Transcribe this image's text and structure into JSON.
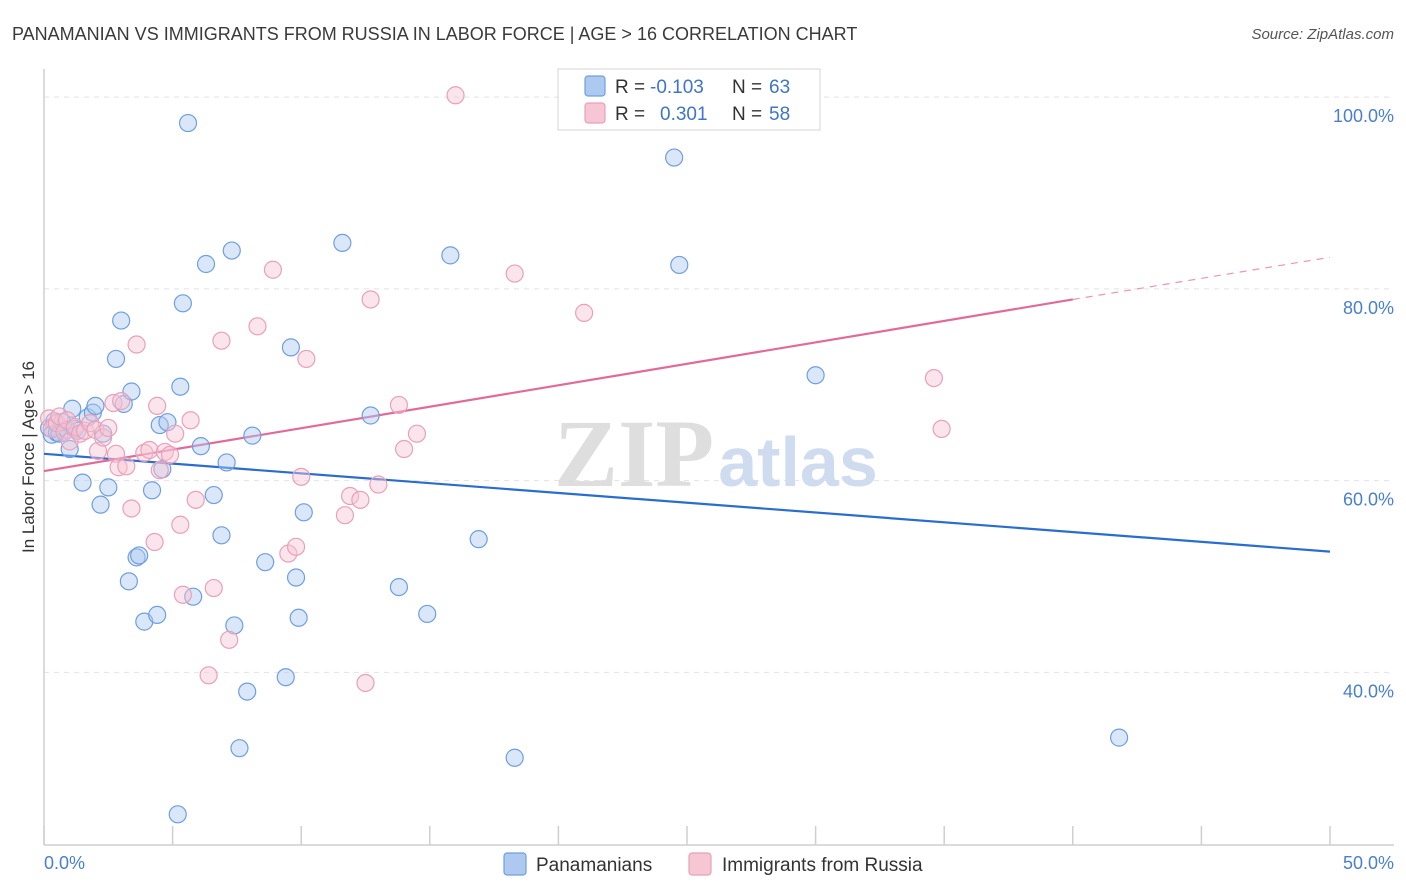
{
  "chart_data": {
    "type": "scatter",
    "title": "PANAMANIAN VS IMMIGRANTS FROM RUSSIA IN LABOR FORCE | AGE > 16 CORRELATION CHART",
    "source": "Source: ZipAtlas.com",
    "ylabel": "In Labor Force | Age > 16",
    "xlabel": "",
    "xlim": [
      0,
      50
    ],
    "ylim": [
      22,
      102
    ],
    "x_tick_labels": [
      "0.0%",
      "50.0%"
    ],
    "y_ticks": [
      40,
      60,
      80,
      100
    ],
    "y_tick_labels": [
      "40.0%",
      "60.0%",
      "80.0%",
      "100.0%"
    ],
    "grid": true,
    "watermark": {
      "zip": "ZIP",
      "atlas": "atlas"
    },
    "legend": {
      "position": "top-center",
      "r_label": "R =",
      "n_label": "N =",
      "entries": [
        {
          "series": "Panamanians",
          "r": "-0.103",
          "n": "63"
        },
        {
          "series": "Immigrants from Russia",
          "r": "0.301",
          "n": "58"
        }
      ]
    },
    "series": [
      {
        "name": "Panamanians",
        "color": "#6f9fe0",
        "fill": "#adc9ef",
        "line_color": "#2a6dd0",
        "trend": {
          "x0": 0,
          "y0": 62.8,
          "x1": 50,
          "y1": 52.6
        },
        "points": [
          [
            0.2,
            65.5
          ],
          [
            0.3,
            64.8
          ],
          [
            0.4,
            66.2
          ],
          [
            0.5,
            65.0
          ],
          [
            0.6,
            64.9
          ],
          [
            0.7,
            66.1
          ],
          [
            0.9,
            65.3
          ],
          [
            1.0,
            63.3
          ],
          [
            1.1,
            67.5
          ],
          [
            1.2,
            65.4
          ],
          [
            1.5,
            59.8
          ],
          [
            1.7,
            66.6
          ],
          [
            1.9,
            67.1
          ],
          [
            2.0,
            67.8
          ],
          [
            2.2,
            57.5
          ],
          [
            2.3,
            64.9
          ],
          [
            2.5,
            59.3
          ],
          [
            2.8,
            72.7
          ],
          [
            3.0,
            76.7
          ],
          [
            3.1,
            68.0
          ],
          [
            3.3,
            49.5
          ],
          [
            3.4,
            69.3
          ],
          [
            3.6,
            52.0
          ],
          [
            3.7,
            52.2
          ],
          [
            3.9,
            45.3
          ],
          [
            4.2,
            59.0
          ],
          [
            4.4,
            46.0
          ],
          [
            4.5,
            65.8
          ],
          [
            4.6,
            61.2
          ],
          [
            4.8,
            66.1
          ],
          [
            5.2,
            25.2
          ],
          [
            5.3,
            69.8
          ],
          [
            5.4,
            78.5
          ],
          [
            5.6,
            97.3
          ],
          [
            5.8,
            47.9
          ],
          [
            6.1,
            63.6
          ],
          [
            6.3,
            82.6
          ],
          [
            6.6,
            58.5
          ],
          [
            6.9,
            54.3
          ],
          [
            7.1,
            61.9
          ],
          [
            7.3,
            84.0
          ],
          [
            7.4,
            44.9
          ],
          [
            7.6,
            32.1
          ],
          [
            7.9,
            38.0
          ],
          [
            8.1,
            64.7
          ],
          [
            8.6,
            51.5
          ],
          [
            9.4,
            39.5
          ],
          [
            9.6,
            73.9
          ],
          [
            9.8,
            49.9
          ],
          [
            9.9,
            45.7
          ],
          [
            10.1,
            56.7
          ],
          [
            11.6,
            84.8
          ],
          [
            12.7,
            66.8
          ],
          [
            13.8,
            48.9
          ],
          [
            14.9,
            46.1
          ],
          [
            15.8,
            83.5
          ],
          [
            16.9,
            53.9
          ],
          [
            18.3,
            31.1
          ],
          [
            24.5,
            93.7
          ],
          [
            24.7,
            82.5
          ],
          [
            30.0,
            71.0
          ],
          [
            41.8,
            33.2
          ],
          [
            1.3,
            65.2
          ]
        ]
      },
      {
        "name": "Immigrants from Russia",
        "color": "#eaa0b8",
        "fill": "#f6c6d5",
        "line_color": "#e26a97",
        "trend": {
          "x0": 0,
          "y0": 61.0,
          "x1": 40,
          "y1": 78.9
        },
        "trend_ext": {
          "x0": 40,
          "y0": 78.9,
          "x1": 50,
          "y1": 83.3
        },
        "points": [
          [
            0.2,
            66.5
          ],
          [
            0.3,
            65.4
          ],
          [
            0.5,
            66.0
          ],
          [
            0.6,
            66.7
          ],
          [
            0.8,
            65.1
          ],
          [
            0.9,
            66.3
          ],
          [
            1.0,
            64.1
          ],
          [
            1.2,
            65.6
          ],
          [
            1.4,
            64.9
          ],
          [
            1.6,
            65.2
          ],
          [
            1.8,
            66.0
          ],
          [
            2.0,
            65.3
          ],
          [
            2.1,
            63.1
          ],
          [
            2.3,
            64.5
          ],
          [
            2.5,
            65.5
          ],
          [
            2.7,
            68.1
          ],
          [
            2.8,
            62.8
          ],
          [
            2.9,
            61.4
          ],
          [
            3.0,
            68.3
          ],
          [
            3.2,
            61.5
          ],
          [
            3.4,
            57.1
          ],
          [
            3.6,
            74.2
          ],
          [
            3.9,
            62.9
          ],
          [
            4.1,
            63.2
          ],
          [
            4.3,
            53.6
          ],
          [
            4.4,
            67.8
          ],
          [
            4.5,
            61.1
          ],
          [
            4.7,
            63.0
          ],
          [
            4.9,
            62.7
          ],
          [
            5.1,
            64.9
          ],
          [
            5.3,
            55.4
          ],
          [
            5.4,
            48.1
          ],
          [
            5.7,
            66.3
          ],
          [
            5.9,
            58.0
          ],
          [
            6.4,
            39.7
          ],
          [
            6.6,
            48.8
          ],
          [
            6.9,
            74.6
          ],
          [
            7.2,
            43.4
          ],
          [
            8.3,
            76.1
          ],
          [
            8.9,
            82.0
          ],
          [
            9.5,
            52.4
          ],
          [
            9.8,
            53.1
          ],
          [
            10.0,
            60.4
          ],
          [
            10.2,
            72.7
          ],
          [
            11.7,
            56.4
          ],
          [
            11.9,
            58.4
          ],
          [
            12.3,
            58.0
          ],
          [
            12.5,
            38.9
          ],
          [
            12.7,
            78.9
          ],
          [
            13.0,
            59.6
          ],
          [
            13.8,
            67.9
          ],
          [
            14.0,
            63.3
          ],
          [
            14.5,
            64.9
          ],
          [
            16.0,
            100.2
          ],
          [
            18.3,
            81.6
          ],
          [
            21.0,
            77.5
          ],
          [
            34.6,
            70.7
          ],
          [
            34.9,
            65.4
          ]
        ]
      }
    ]
  }
}
